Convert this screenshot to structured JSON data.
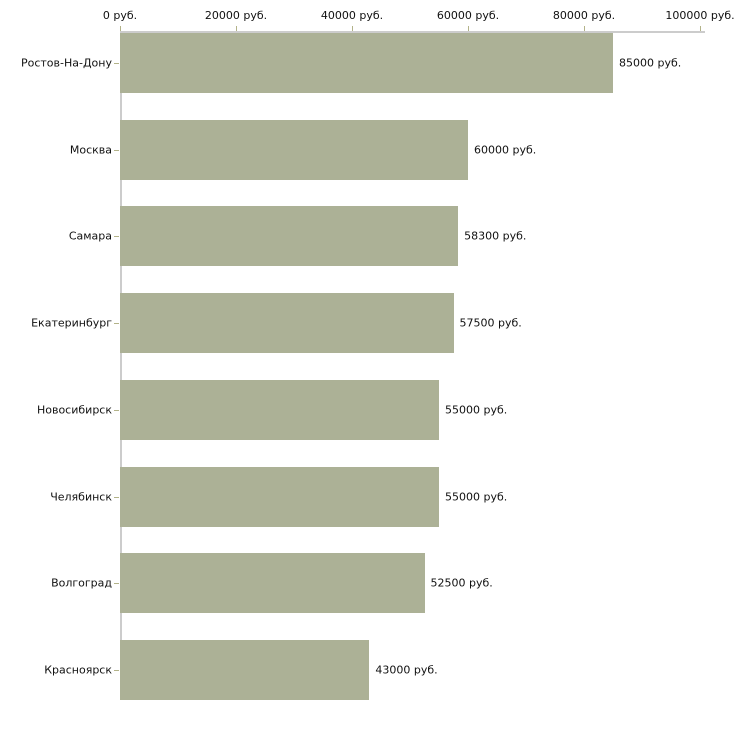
{
  "chart_data": {
    "type": "bar",
    "orientation": "horizontal",
    "title": "",
    "xlabel": "",
    "ylabel": "",
    "categories": [
      "Ростов-На-Дону",
      "Москва",
      "Самара",
      "Екатеринбург",
      "Новосибирск",
      "Челябинск",
      "Волгоград",
      "Красноярск"
    ],
    "values": [
      85000,
      60000,
      58300,
      57500,
      55000,
      55000,
      52500,
      43000
    ],
    "value_labels": [
      "85000 руб.",
      "60000 руб.",
      "58300 руб.",
      "57500 руб.",
      "55000 руб.",
      "55000 руб.",
      "52500 руб.",
      "43000 руб."
    ],
    "x_ticks": [
      0,
      20000,
      40000,
      60000,
      80000,
      100000
    ],
    "x_tick_labels": [
      "0 руб.",
      "20000 руб.",
      "40000 руб.",
      "60000 руб.",
      "80000 руб.",
      "100000 руб."
    ],
    "xlim": [
      0,
      100000
    ],
    "grid": false,
    "legend": false,
    "axis_position": "top",
    "colors": {
      "bar": "#acb196",
      "axis": "#cccccc",
      "tick": "#b3b389",
      "text": "#111111",
      "background": "#ffffff"
    }
  }
}
